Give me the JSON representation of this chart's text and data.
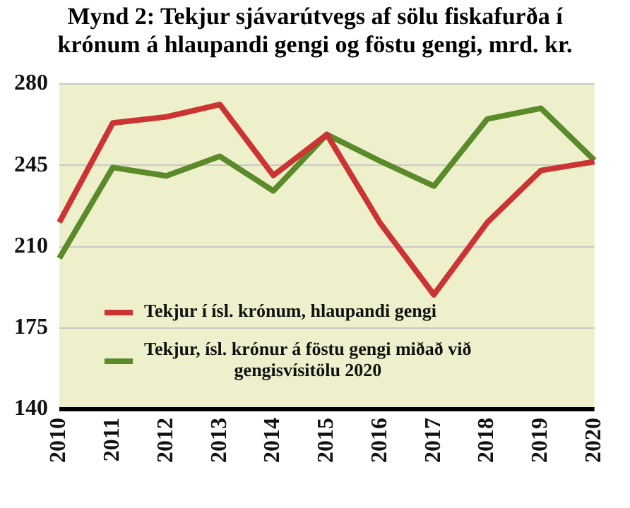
{
  "chart_data": {
    "type": "line",
    "title": "Mynd 2: Tekjur sjávarútvegs af sölu fiskafurða í krónum á hlaupandi gengi og föstu gengi, mrd. kr.",
    "categories": [
      "2010",
      "2011",
      "2012",
      "2013",
      "2014",
      "2015",
      "2016",
      "2017",
      "2018",
      "2019",
      "2020"
    ],
    "series": [
      {
        "name": "Tekjur í ísl. krónum, hlaupandi gengi",
        "color": "#cc3333",
        "values": [
          220.5,
          263.3,
          265.9,
          271.2,
          240.7,
          258.3,
          220,
          189.3,
          220.5,
          242.8,
          246.6
        ]
      },
      {
        "name": "Tekjur, ísl. krónur á föstu gengi miðað við gengisvísitölu 2020",
        "color": "#5a8a2a",
        "values": [
          205,
          244.1,
          240.5,
          248.9,
          234,
          258.3,
          246.8,
          236.1,
          265,
          269.6,
          247.2
        ]
      }
    ],
    "ylim": [
      140,
      280
    ],
    "yticks": [
      140,
      175,
      210,
      245,
      280
    ],
    "grid": "y",
    "legend": "bottom left",
    "marker": "none",
    "line_style": "solid"
  }
}
